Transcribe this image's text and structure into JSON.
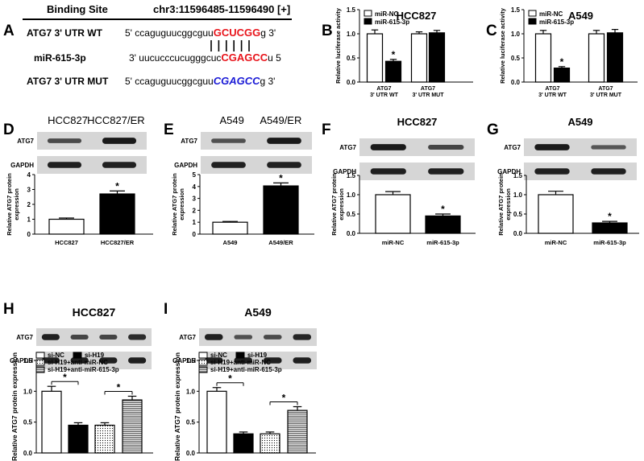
{
  "panels": {
    "A": "A",
    "B": "B",
    "C": "C",
    "D": "D",
    "E": "E",
    "F": "F",
    "G": "G",
    "H": "H",
    "I": "I"
  },
  "panel_a": {
    "header_left": "Binding Site",
    "header_right": "chr3:11596485-11596490 [+]",
    "rows": [
      {
        "label": "ATG7 3' UTR WT",
        "prefix": "5' ccaguguucggcguu",
        "highlight": "GCUCGG",
        "suffix": "g 3'",
        "highlight_color": "#e8141b",
        "italic": false
      },
      {
        "label": "miR-615-3p",
        "prefix": "3' uucucccucugggcuc",
        "highlight": "CGAGCC",
        "suffix": "u 5",
        "highlight_color": "#e8141b",
        "italic": false
      },
      {
        "label": "ATG7 3' UTR MUT",
        "prefix": "5' ccaguguucggcguu",
        "highlight": "CGAGCC",
        "suffix": "g 3'",
        "highlight_color": "#1a1ad6",
        "italic": true
      }
    ]
  },
  "colors": {
    "black": "#000000",
    "white": "#ffffff",
    "red": "#e8141b",
    "blue": "#1a1ad6",
    "blot_bg": "#d6d6d6",
    "band": "#222222"
  },
  "chart_data": [
    {
      "id": "B",
      "type": "bar",
      "title": "HCC827",
      "ylabel": "Relative luciferase activity",
      "ylim": [
        0,
        1.5
      ],
      "yticks": [
        "0.0",
        "0.5",
        "1.0",
        "1.5"
      ],
      "categories": [
        "ATG7\n3' UTR WT",
        "ATG7\n3' UTR MUT"
      ],
      "series": [
        {
          "name": "miR-NC",
          "values": [
            1.0,
            1.0
          ],
          "errors": [
            0.08,
            0.04
          ],
          "fill": "white"
        },
        {
          "name": "miR-615-3p",
          "values": [
            0.43,
            1.02
          ],
          "errors": [
            0.04,
            0.05
          ],
          "fill": "black"
        }
      ],
      "annotations": [
        {
          "text": "*",
          "series": 1,
          "category": 0
        }
      ],
      "legend": "top-left"
    },
    {
      "id": "C",
      "type": "bar",
      "title": "A549",
      "ylabel": "Relative luciferase activity",
      "ylim": [
        0,
        1.5
      ],
      "yticks": [
        "0.0",
        "0.5",
        "1.0",
        "1.5"
      ],
      "categories": [
        "ATG7\n3' UTR WT",
        "ATG7\n3' UTR MUT"
      ],
      "series": [
        {
          "name": "miR-NC",
          "values": [
            1.0,
            1.0
          ],
          "errors": [
            0.07,
            0.07
          ],
          "fill": "white"
        },
        {
          "name": "miR-615-3p",
          "values": [
            0.29,
            1.02
          ],
          "errors": [
            0.03,
            0.07
          ],
          "fill": "black"
        }
      ],
      "annotations": [
        {
          "text": "*",
          "series": 1,
          "category": 0
        }
      ],
      "legend": "top-left"
    },
    {
      "id": "D",
      "type": "bar",
      "ylabel": "Relative ATG7 protein\nexpression",
      "ylim": [
        0,
        4
      ],
      "yticks": [
        "0",
        "1",
        "2",
        "3",
        "4"
      ],
      "categories": [
        "HCC827",
        "HCC827/ER"
      ],
      "values": [
        1.0,
        2.7
      ],
      "errors": [
        0.08,
        0.2
      ],
      "fills": [
        "white",
        "black"
      ],
      "annotations": [
        {
          "text": "*",
          "index": 1
        }
      ],
      "blot": {
        "header": [
          "HCC827",
          "HCC827/ER"
        ],
        "rows": [
          {
            "label": "ATG7",
            "bands": [
              0.55,
              0.95
            ]
          },
          {
            "label": "GAPDH",
            "bands": [
              0.9,
              0.9
            ]
          }
        ]
      }
    },
    {
      "id": "E",
      "type": "bar",
      "ylabel": "Relative ATG7 protein\nexpression",
      "ylim": [
        0,
        5
      ],
      "yticks": [
        "0",
        "1",
        "2",
        "3",
        "4",
        "5"
      ],
      "categories": [
        "A549",
        "A549/ER"
      ],
      "values": [
        1.0,
        4.05
      ],
      "errors": [
        0.07,
        0.25
      ],
      "fills": [
        "white",
        "black"
      ],
      "annotations": [
        {
          "text": "*",
          "index": 1
        }
      ],
      "blot": {
        "header": [
          "A549",
          "A549/ER"
        ],
        "rows": [
          {
            "label": "ATG7",
            "bands": [
              0.5,
              0.95
            ]
          },
          {
            "label": "GAPDH",
            "bands": [
              0.9,
              0.9
            ]
          }
        ]
      }
    },
    {
      "id": "F",
      "type": "bar",
      "title": "HCC827",
      "ylabel": "Relative ATG7 protein\nexpression",
      "ylim": [
        0,
        1.5
      ],
      "yticks": [
        "0.0",
        "0.5",
        "1.0",
        "1.5"
      ],
      "categories": [
        "miR-NC",
        "miR-615-3p"
      ],
      "values": [
        1.0,
        0.45
      ],
      "errors": [
        0.08,
        0.05
      ],
      "fills": [
        "white",
        "black"
      ],
      "annotations": [
        {
          "text": "*",
          "index": 1
        }
      ],
      "blot": {
        "rows": [
          {
            "label": "ATG7",
            "bands": [
              0.95,
              0.6
            ]
          },
          {
            "label": "GAPDH",
            "bands": [
              0.9,
              0.9
            ]
          }
        ]
      }
    },
    {
      "id": "G",
      "type": "bar",
      "title": "A549",
      "ylabel": "Relative ATG7 protein\nexpression",
      "ylim": [
        0,
        1.5
      ],
      "yticks": [
        "0.0",
        "0.5",
        "1.0",
        "1.5"
      ],
      "categories": [
        "miR-NC",
        "miR-615-3p"
      ],
      "values": [
        1.0,
        0.27
      ],
      "errors": [
        0.09,
        0.04
      ],
      "fills": [
        "white",
        "black"
      ],
      "annotations": [
        {
          "text": "*",
          "index": 1
        }
      ],
      "blot": {
        "rows": [
          {
            "label": "ATG7",
            "bands": [
              0.95,
              0.45
            ]
          },
          {
            "label": "GAPDH",
            "bands": [
              0.9,
              0.9
            ]
          }
        ]
      }
    },
    {
      "id": "H",
      "type": "bar",
      "title": "HCC827",
      "ylabel": "Relative ATG7 protein expression",
      "ylim": [
        0,
        1.5
      ],
      "yticks": [
        "0.0",
        "0.5",
        "1.0",
        "1.5"
      ],
      "categories": [
        "si-NC",
        "si-H19",
        "si-H19+anti-miR-NC",
        "si-H19+anti-miR-615-3p"
      ],
      "values": [
        1.0,
        0.45,
        0.45,
        0.86
      ],
      "errors": [
        0.08,
        0.04,
        0.04,
        0.06
      ],
      "fills": [
        "white",
        "black",
        "dots",
        "hlines"
      ],
      "legend": [
        {
          "name": "si-NC",
          "fill": "white"
        },
        {
          "name": "si-H19",
          "fill": "black"
        },
        {
          "name": "si-H19+anti-miR-NC",
          "fill": "dots"
        },
        {
          "name": "si-H19+anti-miR-615-3p",
          "fill": "hlines"
        }
      ],
      "brackets": [
        {
          "from": 0,
          "to": 1,
          "text": "*"
        },
        {
          "from": 2,
          "to": 3,
          "text": "*"
        }
      ],
      "blot": {
        "rows": [
          {
            "label": "ATG7",
            "bands": [
              0.9,
              0.6,
              0.6,
              0.8
            ]
          },
          {
            "label": "GAPDH",
            "bands": [
              0.9,
              0.9,
              0.9,
              0.9
            ]
          }
        ]
      }
    },
    {
      "id": "I",
      "type": "bar",
      "title": "A549",
      "ylabel": "Relative ATG7 protein expression",
      "ylim": [
        0,
        1.5
      ],
      "yticks": [
        "0.0",
        "0.5",
        "1.0",
        "1.5"
      ],
      "categories": [
        "si-NC",
        "si-H19",
        "si-H19+anti-miR-NC",
        "si-H19+anti-miR-615-3p"
      ],
      "values": [
        1.0,
        0.31,
        0.31,
        0.69
      ],
      "errors": [
        0.06,
        0.03,
        0.03,
        0.06
      ],
      "fills": [
        "white",
        "black",
        "dots",
        "hlines"
      ],
      "legend": [
        {
          "name": "si-NC",
          "fill": "white"
        },
        {
          "name": "si-H19",
          "fill": "black"
        },
        {
          "name": "si-H19+anti-miR-NC",
          "fill": "dots"
        },
        {
          "name": "si-H19+anti-miR-615-3p",
          "fill": "hlines"
        }
      ],
      "brackets": [
        {
          "from": 0,
          "to": 1,
          "text": "*"
        },
        {
          "from": 2,
          "to": 3,
          "text": "*"
        }
      ],
      "blot": {
        "rows": [
          {
            "label": "ATG7",
            "bands": [
              0.9,
              0.5,
              0.55,
              0.85
            ]
          },
          {
            "label": "GAPDH",
            "bands": [
              0.9,
              0.9,
              0.9,
              0.9
            ]
          }
        ]
      }
    }
  ]
}
